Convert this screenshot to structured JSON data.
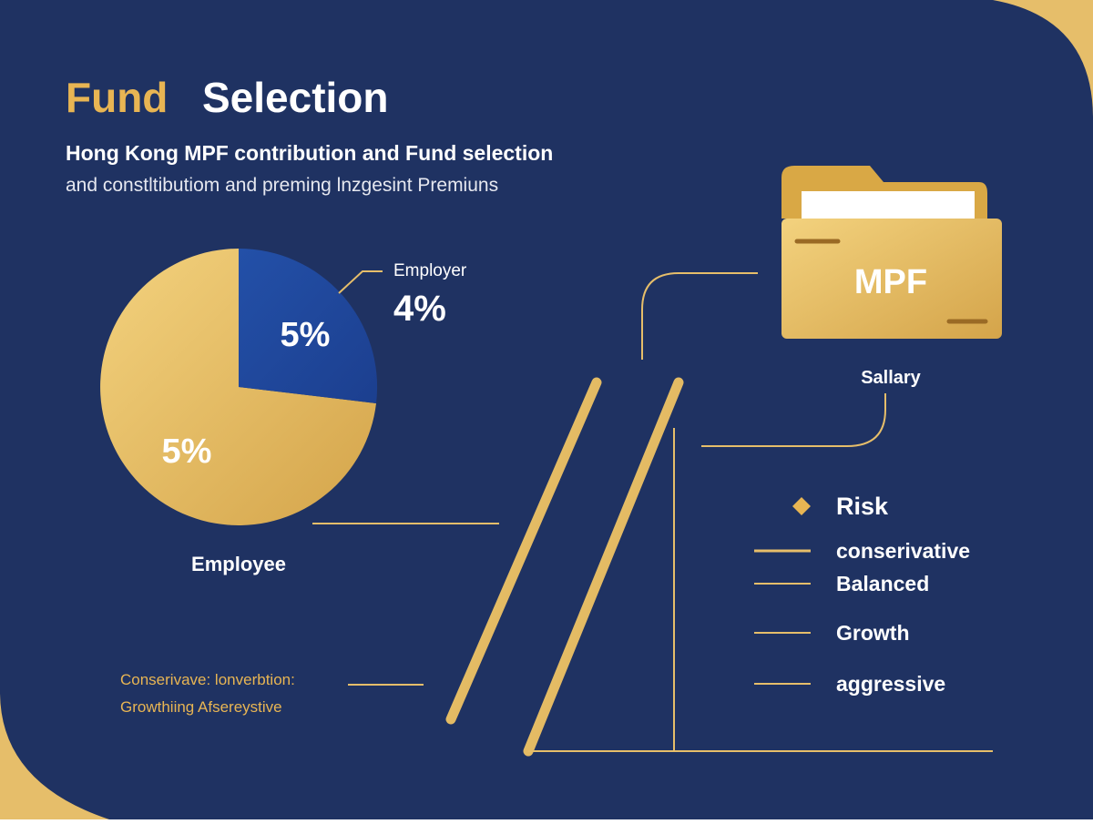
{
  "header": {
    "title_accent": "Fund",
    "title_main": "Selection",
    "subtitle": "Hong Kong MPF contribution and Fund selection",
    "subtitle_2": "and constltibutiom and preming lnzgesint Premiuns"
  },
  "pie": {
    "blue_slice_label": "5%",
    "gold_slice_label": "5%",
    "employer_label": "Employer",
    "employer_value": "4%",
    "employee_label": "Employee"
  },
  "folder": {
    "label": "MPF",
    "caption": "Sallary"
  },
  "risk": {
    "heading": "Risk",
    "levels": [
      "conserivative",
      "Balanced",
      "Growth",
      "aggressive"
    ]
  },
  "footnote": {
    "line_1": "Conserivave: lonverbtion:",
    "line_2": "Growthiing Afsereystive"
  }
}
